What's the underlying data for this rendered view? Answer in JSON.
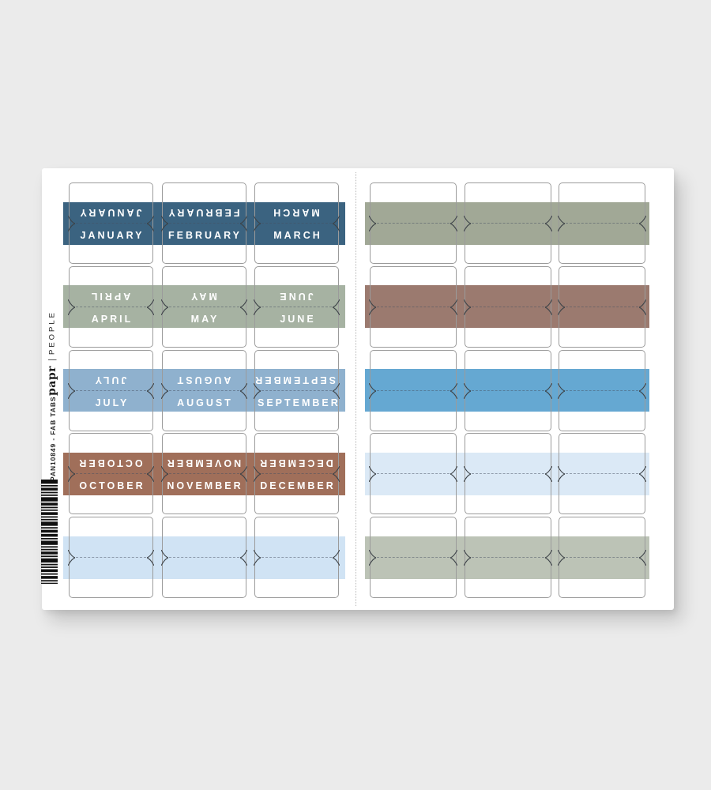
{
  "background_color": "#ebebeb",
  "sheet_color": "#ffffff",
  "branding": {
    "logo": "papr",
    "divider": "|",
    "collection": "PEOPLE",
    "sku": "PAN10849 - FAB TABS",
    "barcode_icon": "barcode"
  },
  "panels": [
    {
      "side": "left",
      "rows": [
        {
          "color": "#3b6380",
          "text_color": "#ffffff",
          "labels": [
            "JANUARY",
            "FEBRUARY",
            "MARCH"
          ]
        },
        {
          "color": "#a6b2a2",
          "text_color": "#ffffff",
          "labels": [
            "APRIL",
            "MAY",
            "JUNE"
          ]
        },
        {
          "color": "#8fb1ce",
          "text_color": "#ffffff",
          "labels": [
            "JULY",
            "AUGUST",
            "SEPTEMBER"
          ]
        },
        {
          "color": "#a06f5a",
          "text_color": "#ffffff",
          "labels": [
            "OCTOBER",
            "NOVEMBER",
            "DECEMBER"
          ]
        },
        {
          "color": "#d0e3f4",
          "text_color": "#ffffff",
          "labels": [
            "",
            "",
            ""
          ]
        }
      ]
    },
    {
      "side": "right",
      "rows": [
        {
          "color": "#a1a896",
          "text_color": "#ffffff",
          "labels": [
            "",
            "",
            ""
          ]
        },
        {
          "color": "#9b7a6f",
          "text_color": "#ffffff",
          "labels": [
            "",
            "",
            ""
          ]
        },
        {
          "color": "#65a8d2",
          "text_color": "#ffffff",
          "labels": [
            "",
            "",
            ""
          ]
        },
        {
          "color": "#dbe9f6",
          "text_color": "#ffffff",
          "labels": [
            "",
            "",
            ""
          ]
        },
        {
          "color": "#bcc3b6",
          "text_color": "#ffffff",
          "labels": [
            "",
            "",
            ""
          ]
        }
      ]
    }
  ]
}
